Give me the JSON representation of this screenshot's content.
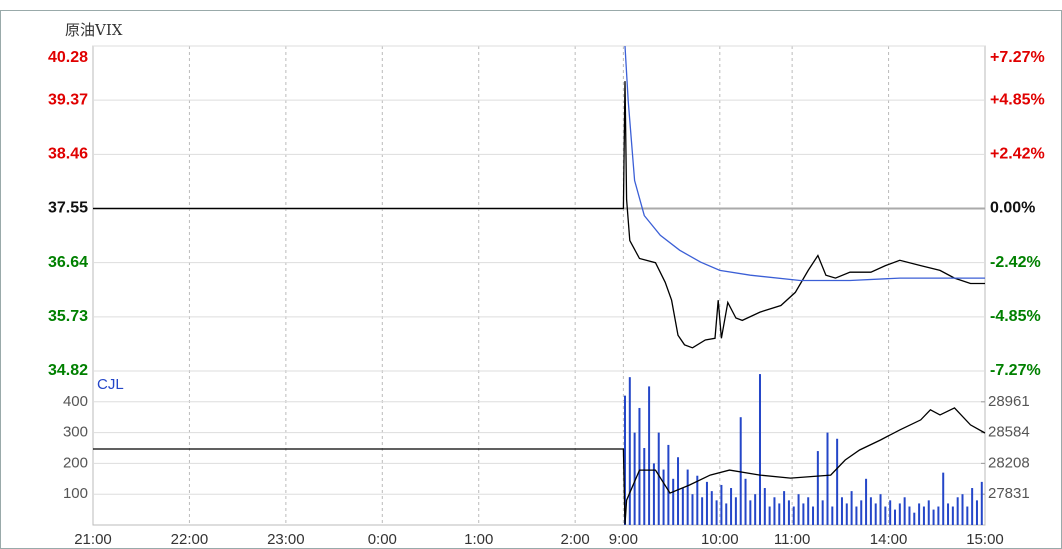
{
  "chart_data": [
    {
      "type": "line",
      "title": "原油VIX",
      "xlim": [
        0,
        555
      ],
      "ylim": [
        34.82,
        40.28
      ],
      "yticks": [
        34.82,
        35.73,
        36.64,
        37.55,
        38.46,
        39.37,
        40.28
      ],
      "y2lim": [
        -7.27,
        7.27
      ],
      "y2ticks": [
        {
          "value": -7.27,
          "label": "-7.27%"
        },
        {
          "value": -4.85,
          "label": "-4.85%"
        },
        {
          "value": -2.42,
          "label": "-2.42%"
        },
        {
          "value": 0,
          "label": "0.00%"
        },
        {
          "value": 2.42,
          "label": "+2.42%"
        },
        {
          "value": 4.85,
          "label": "+4.85%"
        },
        {
          "value": 7.27,
          "label": "+7.27%"
        }
      ],
      "grid": true,
      "series": [
        {
          "color": "#000000",
          "x": [
            0,
            330,
            331,
            332,
            334,
            340,
            350,
            356,
            360,
            364,
            368,
            373,
            381,
            387,
            389,
            391,
            395,
            400,
            404,
            415,
            428,
            437,
            445,
            451,
            456,
            462,
            471,
            484,
            493,
            502,
            515,
            527,
            536,
            546,
            555
          ],
          "values": [
            37.55,
            37.55,
            39.69,
            37.7,
            37.01,
            36.71,
            36.64,
            36.31,
            36.01,
            35.42,
            35.26,
            35.21,
            35.34,
            35.37,
            36.01,
            35.37,
            35.97,
            35.71,
            35.67,
            35.81,
            35.92,
            36.14,
            36.51,
            36.76,
            36.43,
            36.38,
            36.48,
            36.48,
            36.59,
            36.68,
            36.59,
            36.51,
            36.38,
            36.29,
            36.29
          ]
        },
        {
          "color": "#3b5fd6",
          "x": [
            331,
            333,
            337,
            343,
            353,
            365,
            378,
            390,
            409,
            440,
            471,
            502,
            555
          ],
          "values": [
            40.28,
            39.36,
            38.02,
            37.43,
            37.1,
            36.85,
            36.65,
            36.51,
            36.43,
            36.34,
            36.34,
            36.38,
            36.38
          ]
        }
      ]
    },
    {
      "type": "bar",
      "xlim": [
        0,
        555
      ],
      "ylim": [
        0,
        500
      ],
      "yticks": [
        100,
        200,
        300,
        400
      ],
      "y2lim": [
        27454,
        29338
      ],
      "y2ticks": [
        27831,
        28208,
        28584,
        28961
      ],
      "xticks": [
        {
          "value": 0,
          "label": "21:00"
        },
        {
          "value": 60,
          "label": "22:00"
        },
        {
          "value": 120,
          "label": "23:00"
        },
        {
          "value": 180,
          "label": "0:00"
        },
        {
          "value": 240,
          "label": "1:00"
        },
        {
          "value": 300,
          "label": "2:00"
        },
        {
          "value": 330,
          "label": "9:00"
        },
        {
          "value": 390,
          "label": "10:00"
        },
        {
          "value": 435,
          "label": "11:00"
        },
        {
          "value": 495,
          "label": "14:00"
        },
        {
          "value": 555,
          "label": "15:00"
        }
      ],
      "grid": true,
      "series": [
        {
          "name": "CJL",
          "color": "#2446c8",
          "x": [
            331,
            334,
            337,
            340,
            343,
            346,
            349,
            352,
            355,
            358,
            361,
            364,
            367,
            370,
            373,
            376,
            379,
            382,
            385,
            388,
            391,
            394,
            397,
            400,
            403,
            406,
            409,
            412,
            415,
            418,
            421,
            424,
            427,
            430,
            433,
            436,
            439,
            442,
            445,
            448,
            451,
            454,
            457,
            460,
            463,
            466,
            469,
            472,
            475,
            478,
            481,
            484,
            487,
            490,
            493,
            496,
            499,
            502,
            505,
            508,
            511,
            514,
            517,
            520,
            523,
            526,
            529,
            532,
            535,
            538,
            541,
            544,
            547,
            550,
            553
          ],
          "values": [
            420,
            480,
            300,
            380,
            250,
            450,
            200,
            300,
            180,
            260,
            150,
            220,
            120,
            180,
            100,
            160,
            90,
            140,
            110,
            80,
            130,
            70,
            120,
            90,
            350,
            150,
            80,
            100,
            490,
            120,
            60,
            90,
            70,
            110,
            80,
            60,
            100,
            70,
            90,
            60,
            240,
            80,
            300,
            60,
            280,
            90,
            70,
            110,
            60,
            80,
            150,
            90,
            70,
            100,
            60,
            80,
            50,
            70,
            90,
            60,
            40,
            70,
            60,
            80,
            50,
            60,
            170,
            70,
            60,
            90,
            100,
            60,
            120,
            80,
            140
          ]
        },
        {
          "type": "line",
          "axis": "y2",
          "color": "#000000",
          "x": [
            0,
            330,
            331,
            332,
            340,
            350,
            359,
            371,
            384,
            396,
            415,
            434,
            459,
            468,
            477,
            490,
            502,
            515,
            521,
            527,
            536,
            546,
            555
          ],
          "values": [
            28384,
            28384,
            27463,
            27758,
            28126,
            28126,
            27844,
            27942,
            28065,
            28126,
            28065,
            28028,
            28065,
            28249,
            28372,
            28494,
            28617,
            28740,
            28863,
            28801,
            28887,
            28679,
            28580
          ]
        }
      ]
    }
  ]
}
